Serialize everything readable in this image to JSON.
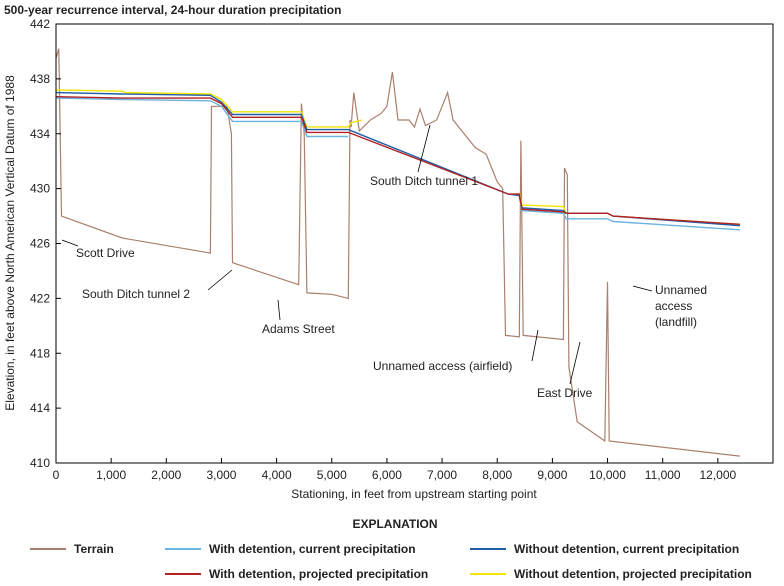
{
  "chart_data": {
    "type": "line",
    "title": "500-year recurrence interval, 24-hour duration precipitation",
    "xlabel": "Stationing, in feet from upstream starting point",
    "ylabel": "Elevation, in feet above North American Vertical Datum of 1988",
    "legend_title": "EXPLANATION",
    "xlim": [
      0,
      13000
    ],
    "ylim": [
      410,
      442
    ],
    "xticks": [
      0,
      {
        "value": 1000,
        "label": "1,000"
      },
      {
        "value": 2000,
        "label": "2,000"
      },
      {
        "value": 3000,
        "label": "3,000"
      },
      {
        "value": 4000,
        "label": "4,000"
      },
      {
        "value": 5000,
        "label": "5,000"
      },
      {
        "value": 6000,
        "label": "6,000"
      },
      {
        "value": 7000,
        "label": "7,000"
      },
      {
        "value": 8000,
        "label": "8,000"
      },
      {
        "value": 9000,
        "label": "9,000"
      },
      {
        "value": 10000,
        "label": "10,000"
      },
      {
        "value": 11000,
        "label": "11,000"
      },
      {
        "value": 12000,
        "label": "12,000"
      }
    ],
    "yticks": [
      410,
      414,
      418,
      422,
      426,
      430,
      434,
      438,
      442
    ],
    "grid": false,
    "series": [
      {
        "name": "Terrain",
        "color": "#a9806e",
        "x": [
          0,
          50,
          100,
          1200,
          2800,
          2820,
          3100,
          3180,
          3200,
          4400,
          4450,
          4500,
          4550,
          5000,
          5300,
          5330,
          5350,
          5400,
          5500,
          5700,
          5900,
          6000,
          6100,
          6200,
          6400,
          6500,
          6600,
          6700,
          6900,
          7100,
          7200,
          7400,
          7600,
          7800,
          7900,
          8000,
          8100,
          8150,
          8400,
          8430,
          8470,
          9200,
          9220,
          9270,
          9300,
          9450,
          9950,
          10000,
          10030,
          12400
        ],
        "values": [
          439.5,
          440.2,
          428,
          426.4,
          425.3,
          436,
          436,
          434,
          424.6,
          423,
          436.2,
          434,
          422.4,
          422.3,
          422,
          435,
          434.5,
          437,
          434.2,
          435,
          435.5,
          436,
          438.5,
          435,
          435,
          434.5,
          435.8,
          434.6,
          435,
          437,
          435,
          434,
          433,
          432.5,
          431.5,
          430.5,
          430,
          419.3,
          419.2,
          433.5,
          419.3,
          419,
          431.5,
          431,
          417,
          413,
          411.6,
          423.2,
          411.6,
          410.5
        ]
      },
      {
        "name": "With detention, current precipitation",
        "color": "#6bb3e0",
        "x": [
          0,
          1200,
          2800,
          3000,
          3200,
          4450,
          4550,
          5300,
          8200,
          8400,
          8450,
          9200,
          9250,
          10000,
          10100,
          12400
        ],
        "values": [
          436.6,
          436.5,
          436.4,
          436.0,
          434.9,
          434.9,
          433.8,
          433.8,
          null,
          429.4,
          428.4,
          428.2,
          427.8,
          427.8,
          427.6,
          427.0
        ]
      },
      {
        "name": "With detention, projected precipitation",
        "color": "#b22222",
        "x": [
          0,
          1200,
          2800,
          3000,
          3200,
          4450,
          4550,
          5300,
          8200,
          8400,
          8450,
          9200,
          9250,
          10000,
          10100,
          12400
        ],
        "values": [
          436.7,
          436.6,
          436.6,
          436.2,
          435.2,
          435.2,
          434.1,
          434.1,
          429.6,
          429.6,
          428.5,
          428.3,
          428.2,
          428.2,
          428.0,
          427.4
        ]
      },
      {
        "name": "Without detention, current precipitation",
        "color": "#1f5fa8",
        "x": [
          0,
          1200,
          2800,
          3000,
          3200,
          4450,
          4550,
          5300,
          8200,
          8400,
          8450,
          9200,
          9250,
          10000,
          10100,
          12400
        ],
        "values": [
          437.0,
          436.9,
          436.8,
          436.3,
          435.4,
          435.4,
          434.3,
          434.3,
          429.6,
          429.5,
          428.6,
          428.4,
          428.2,
          428.2,
          428.0,
          427.3
        ]
      },
      {
        "name": "Without detention, projected precipitation",
        "color": "#f2e500",
        "x": [
          0,
          1200,
          1250,
          2800,
          3000,
          3200,
          4450,
          4550,
          5300,
          5350,
          5550,
          8200,
          8400,
          8450,
          9200,
          9250,
          10000,
          10100,
          12400
        ],
        "values": [
          437.2,
          437.1,
          437.0,
          436.9,
          436.5,
          435.6,
          435.6,
          434.5,
          434.5,
          434.8,
          435.0,
          null,
          429.7,
          428.8,
          428.7,
          428.2,
          428.2,
          428.0,
          427.4
        ]
      }
    ],
    "annotations": [
      {
        "lines": [
          "Scott Drive"
        ]
      },
      {
        "lines": [
          "South Ditch tunnel 2"
        ]
      },
      {
        "lines": [
          "Adams Street"
        ]
      },
      {
        "lines": [
          "South Ditch tunnel 1"
        ]
      },
      {
        "lines": [
          "Unnamed access (airfield)"
        ]
      },
      {
        "lines": [
          "East Drive"
        ]
      },
      {
        "lines": [
          "Unnamed",
          "access",
          "(landfill)"
        ]
      }
    ]
  }
}
